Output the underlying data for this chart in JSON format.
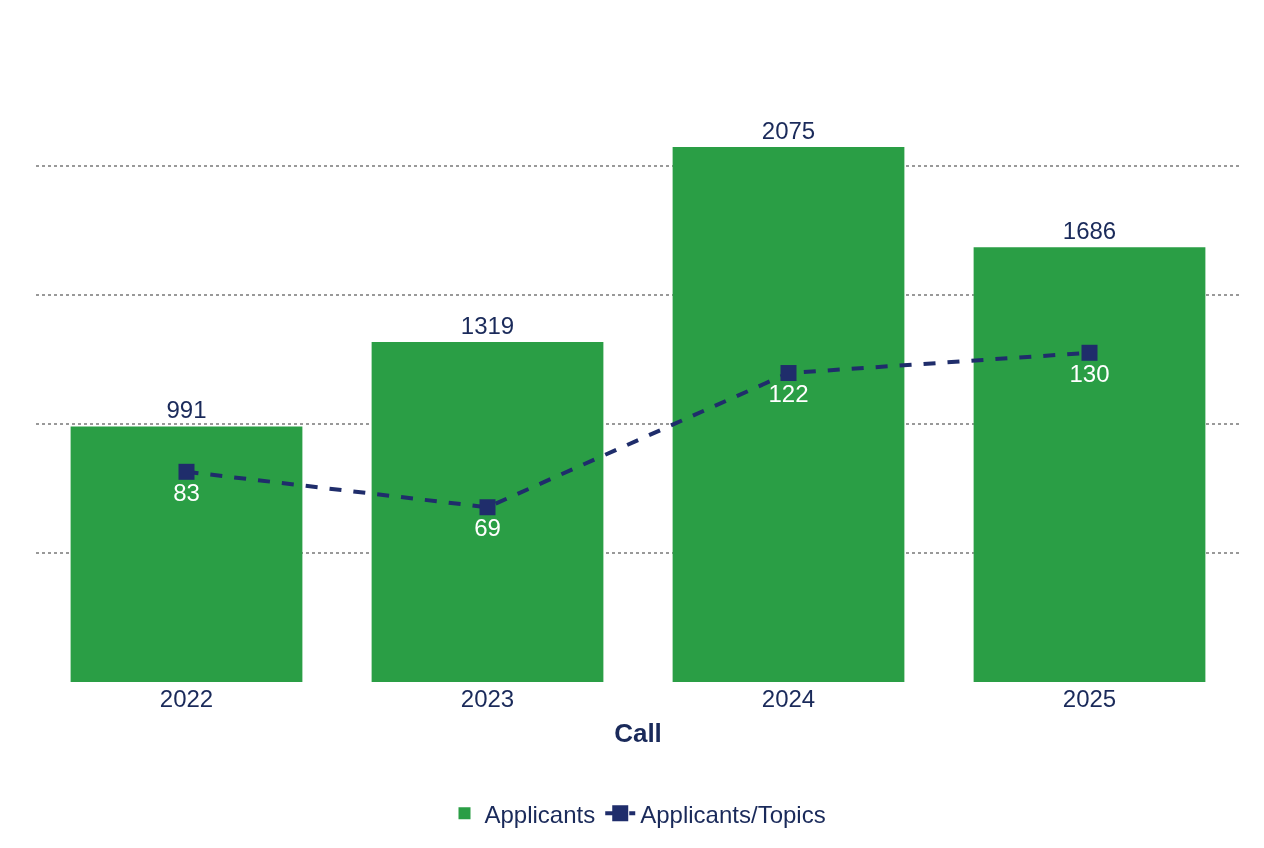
{
  "chart_data": {
    "type": "bar",
    "xlabel": "Call",
    "categories": [
      "2022",
      "2023",
      "2024",
      "2025"
    ],
    "series": [
      {
        "name": "Applicants",
        "color": "#2a9e45",
        "values": [
          991,
          1319,
          2075,
          1686
        ]
      },
      {
        "name": "Applicants/Topics",
        "type": "line",
        "axis": "y2",
        "color": "#1f2d6b",
        "marker": "square",
        "line_style": "dashed",
        "values": [
          83,
          69,
          122,
          130
        ]
      }
    ],
    "data_labels": true,
    "grid": "y",
    "tick_labels": "x",
    "legend": "bottom"
  }
}
